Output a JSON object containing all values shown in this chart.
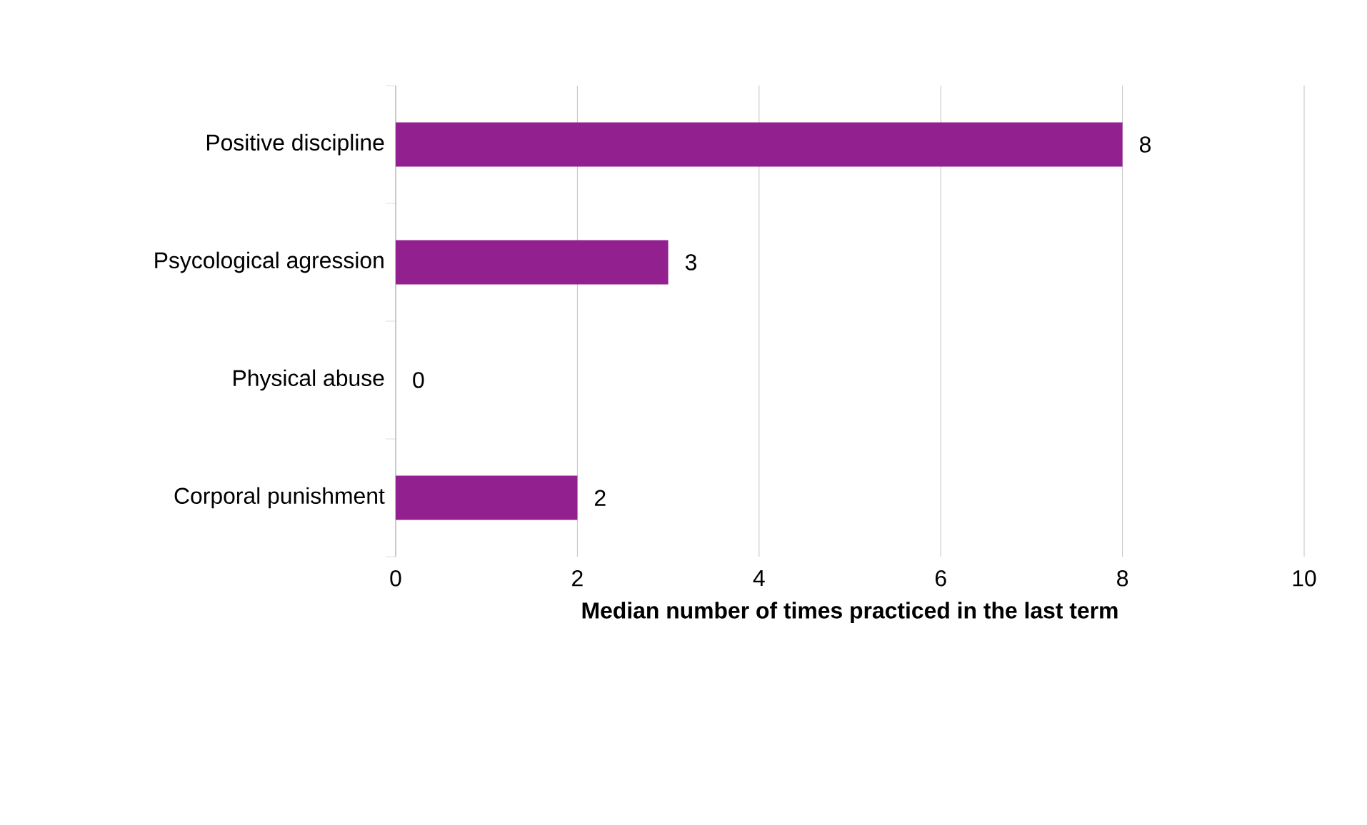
{
  "chart_data": {
    "type": "bar",
    "orientation": "horizontal",
    "xlabel": "Median number of times practiced in the last term",
    "categories": [
      "Positive discipline",
      "Psycological agression",
      "Physical abuse",
      "Corporal punishment"
    ],
    "values": [
      8,
      3,
      0,
      2
    ],
    "color": "#92208f",
    "data_labels": true,
    "xlim": [
      0,
      10
    ],
    "xticks": [
      0,
      2,
      4,
      6,
      8,
      10
    ],
    "grid": "x"
  }
}
